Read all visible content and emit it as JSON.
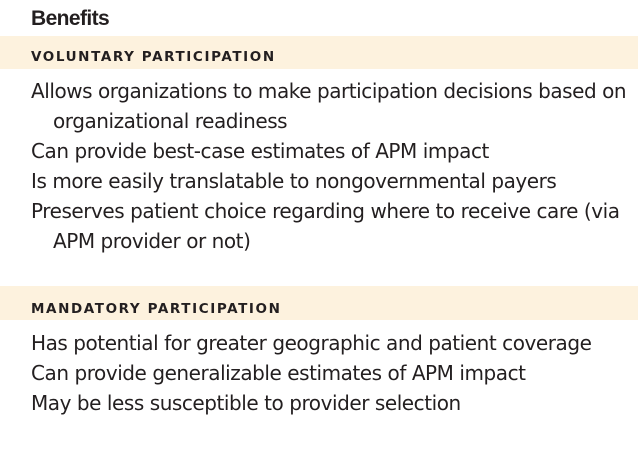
{
  "title": "Benefits",
  "sections": [
    {
      "heading": "VOLUNTARY PARTICIPATION",
      "items": [
        "Allows organizations to make participation decisions based on organizational readiness",
        "Can provide best-case estimates of APM impact",
        "Is more easily translatable to nongovernmental payers",
        "Preserves patient choice regarding where to receive care (via APM provider or not)"
      ]
    },
    {
      "heading": "MANDATORY PARTICIPATION",
      "items": [
        "Has potential for greater geographic and patient coverage",
        "Can provide generalizable estimates of APM impact",
        "May be less susceptible to provider selection"
      ]
    }
  ],
  "colors": {
    "section_band": "#fdf2de",
    "text": "#231f20"
  }
}
